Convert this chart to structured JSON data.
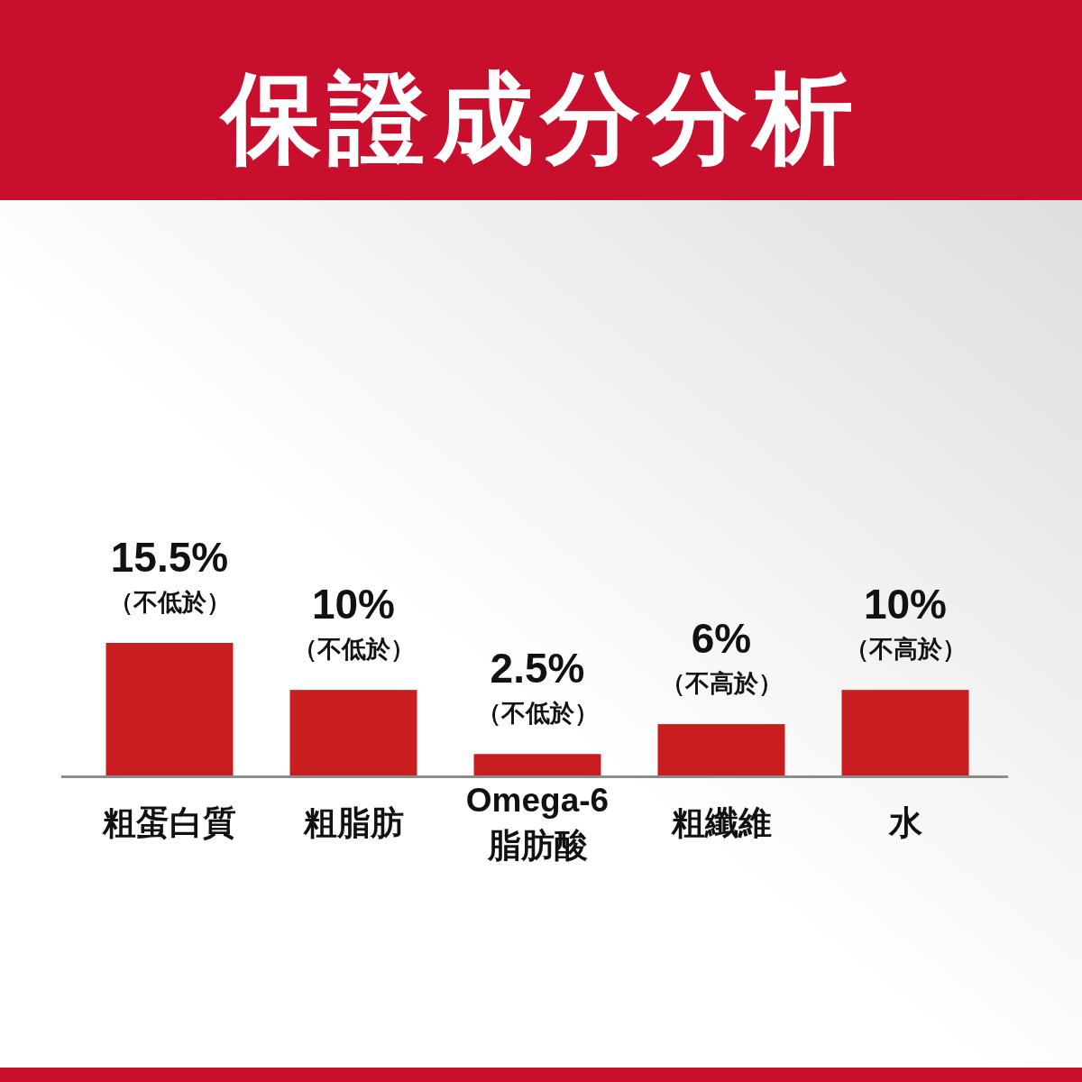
{
  "chart_data": {
    "type": "bar",
    "title": "保證成分分析",
    "categories": [
      "粗蛋白質",
      "粗脂肪",
      "Omega-6\n脂肪酸",
      "粗纖維",
      "水"
    ],
    "values": [
      15.5,
      10,
      2.5,
      6,
      10
    ],
    "color": "#c81e20",
    "value_labels": [
      "15.5%",
      "10%",
      "2.5%",
      "6%",
      "10%"
    ],
    "annotations": [
      {
        "text": "（不低於）",
        "x": "粗蛋白質",
        "y": 15.5
      },
      {
        "text": "（不低於）",
        "x": "粗脂肪",
        "y": 10
      },
      {
        "text": "（不低於）",
        "x": "Omega-6\n脂肪酸",
        "y": 2.5
      },
      {
        "text": "（不高於）",
        "x": "粗纖維",
        "y": 6
      },
      {
        "text": "（不高於）",
        "x": "水",
        "y": 10
      }
    ]
  }
}
